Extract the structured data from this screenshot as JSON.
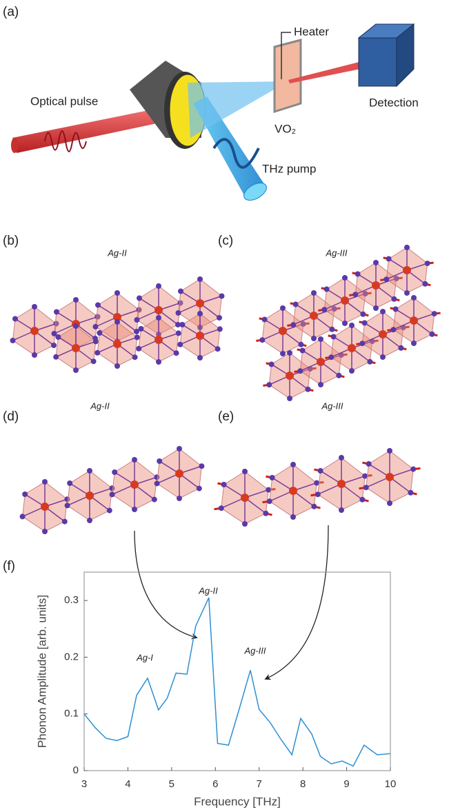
{
  "panels": {
    "a": {
      "label": "(a)",
      "heater": "Heater",
      "detection": "Detection",
      "optical_pulse": "Optical pulse",
      "sample": "VO₂",
      "thz_pump": "THz pump"
    },
    "b": {
      "label": "(b)",
      "mode": "Ag-II"
    },
    "c": {
      "label": "(c)",
      "mode": "Ag-III"
    },
    "d": {
      "label": "(d)",
      "mode": "Ag-II"
    },
    "e": {
      "label": "(e)",
      "mode": "Ag-III"
    },
    "f": {
      "label": "(f)"
    }
  },
  "chart_data": {
    "type": "line",
    "x_label": "Frequency [THz]",
    "y_label": "Phonon Amplitude [arb. units]",
    "x": [
      3,
      3.25,
      3.5,
      3.75,
      4,
      4.2,
      4.45,
      4.7,
      4.9,
      5.1,
      5.35,
      5.55,
      5.85,
      6.05,
      6.3,
      6.55,
      6.8,
      7,
      7.25,
      7.5,
      7.75,
      7.95,
      8.2,
      8.4,
      8.65,
      8.9,
      9.15,
      9.4,
      9.7,
      10
    ],
    "values": [
      0.1,
      0.076,
      0.057,
      0.053,
      0.06,
      0.133,
      0.163,
      0.107,
      0.128,
      0.172,
      0.17,
      0.255,
      0.305,
      0.048,
      0.045,
      0.11,
      0.177,
      0.108,
      0.085,
      0.055,
      0.028,
      0.092,
      0.065,
      0.025,
      0.012,
      0.017,
      0.008,
      0.045,
      0.028,
      0.03
    ],
    "color": "#2a8fd4",
    "annotations": [
      "Ag-I",
      "Ag-II",
      "Ag-III"
    ],
    "xlim": [
      3,
      10
    ],
    "xticks": [
      3,
      4,
      5,
      6,
      7,
      8,
      9,
      10
    ],
    "ylim": [
      0,
      0.35
    ],
    "yticks": [
      0,
      0.1,
      0.2,
      0.3
    ]
  }
}
